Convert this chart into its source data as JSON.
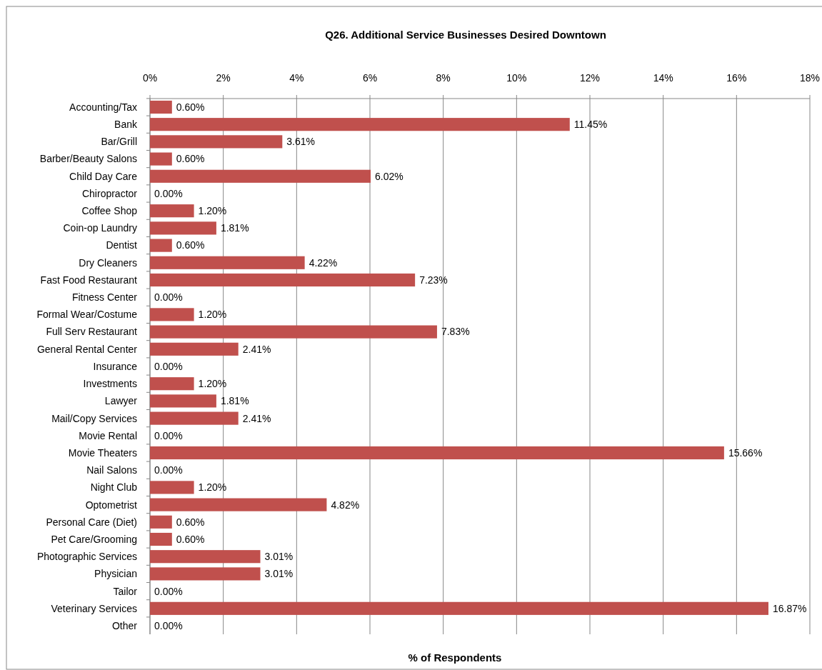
{
  "chart_data": {
    "type": "bar",
    "orientation": "horizontal",
    "title": "Q26. Additional Service Businesses Desired Downtown",
    "xlabel": "% of Respondents",
    "categories": [
      "Accounting/Tax",
      "Bank",
      "Bar/Grill",
      "Barber/Beauty Salons",
      "Child Day Care",
      "Chiropractor",
      "Coffee Shop",
      "Coin-op Laundry",
      "Dentist",
      "Dry Cleaners",
      "Fast Food Restaurant",
      "Fitness Center",
      "Formal Wear/Costume",
      "Full Serv Restaurant",
      "General Rental Center",
      "Insurance",
      "Investments",
      "Lawyer",
      "Mail/Copy Services",
      "Movie Rental",
      "Movie Theaters",
      "Nail Salons",
      "Night Club",
      "Optometrist",
      "Personal Care (Diet)",
      "Pet Care/Grooming",
      "Photographic Services",
      "Physician",
      "Tailor",
      "Veterinary Services",
      "Other"
    ],
    "values": [
      0.6,
      11.45,
      3.61,
      0.6,
      6.02,
      0,
      1.2,
      1.81,
      0.6,
      4.22,
      7.23,
      0,
      1.2,
      7.83,
      2.41,
      0,
      1.2,
      1.81,
      2.41,
      0,
      15.66,
      0,
      1.2,
      4.82,
      0.6,
      0.6,
      3.01,
      3.01,
      0,
      16.87,
      0
    ],
    "value_labels": [
      "0.60%",
      "11.45%",
      "3.61%",
      "0.60%",
      "6.02%",
      "0.00%",
      "1.20%",
      "1.81%",
      "0.60%",
      "4.22%",
      "7.23%",
      "0.00%",
      "1.20%",
      "7.83%",
      "2.41%",
      "0.00%",
      "1.20%",
      "1.81%",
      "2.41%",
      "0.00%",
      "15.66%",
      "0.00%",
      "1.20%",
      "4.82%",
      "0.60%",
      "0.60%",
      "3.01%",
      "3.01%",
      "0.00%",
      "16.87%",
      "0.00%"
    ],
    "color": "#c0504d",
    "xlim": [
      0,
      18
    ],
    "xticks": [
      {
        "value": 0,
        "label": "0%"
      },
      {
        "value": 2,
        "label": "2%"
      },
      {
        "value": 4,
        "label": "4%"
      },
      {
        "value": 6,
        "label": "6%"
      },
      {
        "value": 8,
        "label": "8%"
      },
      {
        "value": 10,
        "label": "10%"
      },
      {
        "value": 12,
        "label": "12%"
      },
      {
        "value": 14,
        "label": "14%"
      },
      {
        "value": 16,
        "label": "16%"
      },
      {
        "value": 18,
        "label": "18%"
      }
    ],
    "grid": "x"
  }
}
